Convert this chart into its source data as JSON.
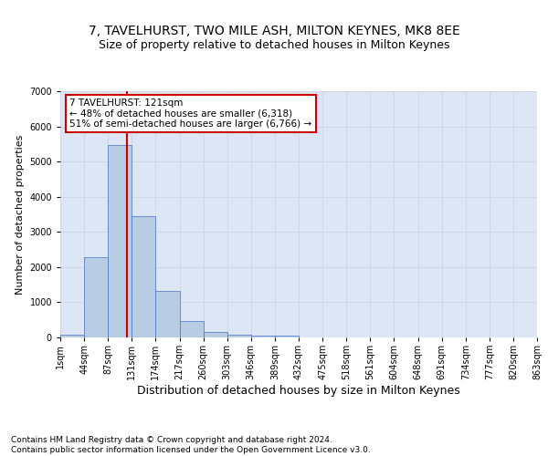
{
  "title1": "7, TAVELHURST, TWO MILE ASH, MILTON KEYNES, MK8 8EE",
  "title2": "Size of property relative to detached houses in Milton Keynes",
  "xlabel": "Distribution of detached houses by size in Milton Keynes",
  "ylabel": "Number of detached properties",
  "footer1": "Contains HM Land Registry data © Crown copyright and database right 2024.",
  "footer2": "Contains public sector information licensed under the Open Government Licence v3.0.",
  "bin_labels": [
    "1sqm",
    "44sqm",
    "87sqm",
    "131sqm",
    "174sqm",
    "217sqm",
    "260sqm",
    "303sqm",
    "346sqm",
    "389sqm",
    "432sqm",
    "475sqm",
    "518sqm",
    "561sqm",
    "604sqm",
    "648sqm",
    "691sqm",
    "734sqm",
    "777sqm",
    "820sqm",
    "863sqm"
  ],
  "bar_values": [
    80,
    2280,
    5480,
    3450,
    1310,
    470,
    160,
    90,
    60,
    40,
    0,
    0,
    0,
    0,
    0,
    0,
    0,
    0,
    0,
    0
  ],
  "bar_color": "#b8cce4",
  "bar_edge_color": "#4472c4",
  "grid_color": "#d0d8e8",
  "background_color": "#dce6f5",
  "vline_color": "#cc0000",
  "annotation_text": "7 TAVELHURST: 121sqm\n← 48% of detached houses are smaller (6,318)\n51% of semi-detached houses are larger (6,766) →",
  "annotation_box_color": "#cc0000",
  "ylim": [
    0,
    7000
  ],
  "yticks": [
    0,
    1000,
    2000,
    3000,
    4000,
    5000,
    6000,
    7000
  ],
  "title1_fontsize": 10,
  "title2_fontsize": 9,
  "xlabel_fontsize": 9,
  "ylabel_fontsize": 8,
  "tick_fontsize": 7,
  "annotation_fontsize": 7.5,
  "footer_fontsize": 6.5
}
